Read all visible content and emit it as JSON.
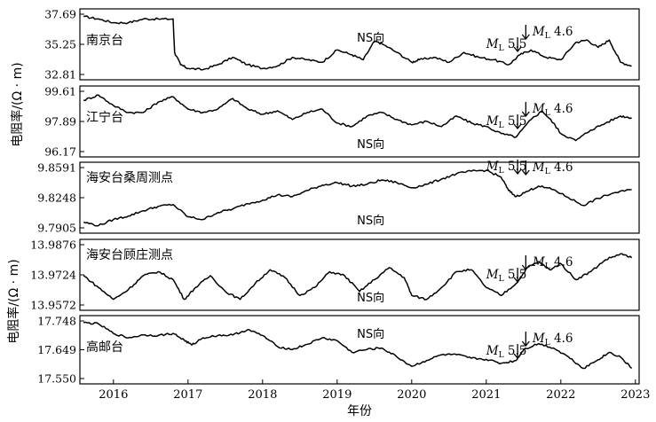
{
  "chart_data": {
    "type": "line",
    "xlabel": "年份",
    "ylabel_upper": "电阻率/(Ω · m)",
    "ylabel_lower": "电阻率/(Ω · m)",
    "x_ticks": [
      "2016",
      "2017",
      "2018",
      "2019",
      "2020",
      "2021",
      "2022",
      "2023"
    ],
    "xlim": [
      2015.55,
      2023.05
    ],
    "events": [
      {
        "label": "5.5",
        "magnitude_prefix": "M",
        "magnitude_sub": "L",
        "x": 2021.42
      },
      {
        "label": "4.6",
        "magnitude_prefix": "M",
        "magnitude_sub": "L",
        "x": 2021.53
      }
    ],
    "panels": [
      {
        "name": "南京台",
        "direction": "NS向",
        "ylim": [
          32.81,
          37.69
        ],
        "yticks": [
          "37.69",
          "35.25",
          "32.81"
        ],
        "points": [
          [
            2015.6,
            37.5
          ],
          [
            2015.8,
            37.3
          ],
          [
            2016.0,
            37.0
          ],
          [
            2016.2,
            37.0
          ],
          [
            2016.4,
            37.3
          ],
          [
            2016.6,
            37.3
          ],
          [
            2016.8,
            37.3
          ],
          [
            2016.82,
            34.6
          ],
          [
            2016.9,
            33.6
          ],
          [
            2017.0,
            33.3
          ],
          [
            2017.2,
            33.2
          ],
          [
            2017.4,
            33.6
          ],
          [
            2017.6,
            34.2
          ],
          [
            2017.8,
            33.6
          ],
          [
            2018.0,
            33.3
          ],
          [
            2018.2,
            33.5
          ],
          [
            2018.4,
            34.2
          ],
          [
            2018.6,
            34.0
          ],
          [
            2018.8,
            33.8
          ],
          [
            2019.0,
            34.8
          ],
          [
            2019.2,
            34.4
          ],
          [
            2019.35,
            34.0
          ],
          [
            2019.5,
            35.5
          ],
          [
            2019.6,
            35.3
          ],
          [
            2019.8,
            34.6
          ],
          [
            2020.0,
            33.8
          ],
          [
            2020.1,
            34.0
          ],
          [
            2020.3,
            34.2
          ],
          [
            2020.5,
            33.8
          ],
          [
            2020.7,
            34.6
          ],
          [
            2020.9,
            34.2
          ],
          [
            2021.1,
            34.0
          ],
          [
            2021.3,
            33.6
          ],
          [
            2021.45,
            34.4
          ],
          [
            2021.6,
            34.8
          ],
          [
            2021.8,
            34.2
          ],
          [
            2022.0,
            34.0
          ],
          [
            2022.2,
            35.4
          ],
          [
            2022.35,
            35.6
          ],
          [
            2022.5,
            35.0
          ],
          [
            2022.65,
            35.6
          ],
          [
            2022.8,
            33.8
          ],
          [
            2022.95,
            33.5
          ]
        ],
        "labels": {
          "dir_x": 2019.45,
          "eq1_x": 2021.0,
          "eq2_x": 2021.62
        }
      },
      {
        "name": "江宁台",
        "direction": "NS向",
        "ylim": [
          96.17,
          99.61
        ],
        "yticks": [
          "99.61",
          "97.89",
          "96.17"
        ],
        "points": [
          [
            2015.6,
            99.1
          ],
          [
            2015.8,
            99.4
          ],
          [
            2016.0,
            98.8
          ],
          [
            2016.2,
            98.4
          ],
          [
            2016.4,
            98.4
          ],
          [
            2016.6,
            99.0
          ],
          [
            2016.8,
            99.3
          ],
          [
            2017.0,
            98.6
          ],
          [
            2017.2,
            98.4
          ],
          [
            2017.4,
            98.6
          ],
          [
            2017.6,
            99.2
          ],
          [
            2017.8,
            98.6
          ],
          [
            2018.0,
            98.3
          ],
          [
            2018.2,
            98.5
          ],
          [
            2018.4,
            98.0
          ],
          [
            2018.6,
            98.4
          ],
          [
            2018.8,
            98.6
          ],
          [
            2019.0,
            97.8
          ],
          [
            2019.2,
            97.6
          ],
          [
            2019.4,
            98.2
          ],
          [
            2019.6,
            98.4
          ],
          [
            2019.8,
            98.0
          ],
          [
            2020.0,
            97.7
          ],
          [
            2020.2,
            97.9
          ],
          [
            2020.4,
            97.6
          ],
          [
            2020.6,
            98.2
          ],
          [
            2020.8,
            97.8
          ],
          [
            2021.0,
            97.6
          ],
          [
            2021.2,
            97.2
          ],
          [
            2021.4,
            97.0
          ],
          [
            2021.6,
            98.0
          ],
          [
            2021.75,
            98.5
          ],
          [
            2021.9,
            97.8
          ],
          [
            2022.0,
            97.2
          ],
          [
            2022.2,
            96.8
          ],
          [
            2022.4,
            97.4
          ],
          [
            2022.6,
            97.8
          ],
          [
            2022.8,
            98.2
          ],
          [
            2022.95,
            98.1
          ]
        ],
        "labels": {
          "dir_x": 2019.45,
          "eq1_x": 2021.0,
          "eq2_x": 2021.62
        }
      },
      {
        "name": "海安台桑周测点",
        "direction": "NS向",
        "ylim": [
          9.7905,
          9.8591
        ],
        "yticks": [
          "9.8591",
          "9.8248",
          "9.7905"
        ],
        "points": [
          [
            2015.6,
            9.797
          ],
          [
            2015.8,
            9.793
          ],
          [
            2016.0,
            9.8
          ],
          [
            2016.2,
            9.804
          ],
          [
            2016.4,
            9.81
          ],
          [
            2016.6,
            9.815
          ],
          [
            2016.8,
            9.817
          ],
          [
            2017.0,
            9.803
          ],
          [
            2017.2,
            9.8
          ],
          [
            2017.4,
            9.808
          ],
          [
            2017.6,
            9.812
          ],
          [
            2017.8,
            9.818
          ],
          [
            2018.0,
            9.822
          ],
          [
            2018.2,
            9.828
          ],
          [
            2018.4,
            9.826
          ],
          [
            2018.6,
            9.833
          ],
          [
            2018.8,
            9.839
          ],
          [
            2019.0,
            9.842
          ],
          [
            2019.2,
            9.838
          ],
          [
            2019.4,
            9.84
          ],
          [
            2019.6,
            9.845
          ],
          [
            2019.8,
            9.842
          ],
          [
            2020.0,
            9.836
          ],
          [
            2020.2,
            9.84
          ],
          [
            2020.4,
            9.846
          ],
          [
            2020.6,
            9.852
          ],
          [
            2020.8,
            9.855
          ],
          [
            2021.0,
            9.856
          ],
          [
            2021.2,
            9.848
          ],
          [
            2021.3,
            9.833
          ],
          [
            2021.4,
            9.826
          ],
          [
            2021.55,
            9.832
          ],
          [
            2021.7,
            9.838
          ],
          [
            2021.9,
            9.834
          ],
          [
            2022.1,
            9.825
          ],
          [
            2022.3,
            9.816
          ],
          [
            2022.5,
            9.824
          ],
          [
            2022.7,
            9.83
          ],
          [
            2022.95,
            9.834
          ]
        ],
        "labels": {
          "dir_x": 2019.45,
          "eq1_x": 2021.0,
          "eq2_x": 2021.62
        }
      },
      {
        "name": "海安台顾庄测点",
        "direction": "NS向",
        "ylim": [
          13.9572,
          13.9876
        ],
        "yticks": [
          "13.9876",
          "13.9724",
          "13.9572"
        ],
        "points": [
          [
            2015.6,
            13.972
          ],
          [
            2015.8,
            13.966
          ],
          [
            2016.0,
            13.96
          ],
          [
            2016.2,
            13.965
          ],
          [
            2016.4,
            13.972
          ],
          [
            2016.6,
            13.974
          ],
          [
            2016.8,
            13.97
          ],
          [
            2016.95,
            13.96
          ],
          [
            2017.1,
            13.966
          ],
          [
            2017.3,
            13.972
          ],
          [
            2017.5,
            13.964
          ],
          [
            2017.7,
            13.96
          ],
          [
            2017.9,
            13.968
          ],
          [
            2018.1,
            13.975
          ],
          [
            2018.3,
            13.971
          ],
          [
            2018.5,
            13.962
          ],
          [
            2018.7,
            13.966
          ],
          [
            2018.9,
            13.974
          ],
          [
            2019.1,
            13.972
          ],
          [
            2019.3,
            13.964
          ],
          [
            2019.5,
            13.97
          ],
          [
            2019.7,
            13.976
          ],
          [
            2019.9,
            13.971
          ],
          [
            2020.0,
            13.962
          ],
          [
            2020.2,
            13.96
          ],
          [
            2020.4,
            13.966
          ],
          [
            2020.6,
            13.974
          ],
          [
            2020.8,
            13.975
          ],
          [
            2021.0,
            13.966
          ],
          [
            2021.2,
            13.962
          ],
          [
            2021.4,
            13.968
          ],
          [
            2021.55,
            13.976
          ],
          [
            2021.7,
            13.979
          ],
          [
            2021.85,
            13.975
          ],
          [
            2022.0,
            13.978
          ],
          [
            2022.2,
            13.97
          ],
          [
            2022.4,
            13.974
          ],
          [
            2022.6,
            13.98
          ],
          [
            2022.8,
            13.983
          ],
          [
            2022.95,
            13.981
          ]
        ],
        "labels": {
          "dir_x": 2019.45,
          "eq1_x": 2021.0,
          "eq2_x": 2021.62
        }
      },
      {
        "name": "高邮台",
        "direction": "NS向",
        "ylim": [
          17.55,
          17.748
        ],
        "yticks": [
          "17.748",
          "17.649",
          "17.550"
        ],
        "points": [
          [
            2015.6,
            17.742
          ],
          [
            2015.8,
            17.738
          ],
          [
            2016.0,
            17.705
          ],
          [
            2016.2,
            17.69
          ],
          [
            2016.4,
            17.7
          ],
          [
            2016.6,
            17.698
          ],
          [
            2016.8,
            17.705
          ],
          [
            2016.95,
            17.682
          ],
          [
            2017.05,
            17.665
          ],
          [
            2017.2,
            17.69
          ],
          [
            2017.4,
            17.698
          ],
          [
            2017.6,
            17.7
          ],
          [
            2017.8,
            17.718
          ],
          [
            2018.0,
            17.698
          ],
          [
            2018.2,
            17.66
          ],
          [
            2018.4,
            17.65
          ],
          [
            2018.6,
            17.668
          ],
          [
            2018.8,
            17.69
          ],
          [
            2019.0,
            17.68
          ],
          [
            2019.2,
            17.64
          ],
          [
            2019.4,
            17.65
          ],
          [
            2019.6,
            17.655
          ],
          [
            2019.8,
            17.625
          ],
          [
            2020.0,
            17.592
          ],
          [
            2020.2,
            17.612
          ],
          [
            2020.4,
            17.632
          ],
          [
            2020.6,
            17.632
          ],
          [
            2020.8,
            17.62
          ],
          [
            2021.0,
            17.616
          ],
          [
            2021.2,
            17.602
          ],
          [
            2021.4,
            17.612
          ],
          [
            2021.5,
            17.65
          ],
          [
            2021.7,
            17.67
          ],
          [
            2021.9,
            17.655
          ],
          [
            2022.1,
            17.625
          ],
          [
            2022.3,
            17.585
          ],
          [
            2022.5,
            17.615
          ],
          [
            2022.65,
            17.64
          ],
          [
            2022.8,
            17.624
          ],
          [
            2022.95,
            17.585
          ]
        ],
        "labels": {
          "dir_x": 2019.45,
          "eq1_x": 2021.0,
          "eq2_x": 2021.62
        }
      }
    ]
  }
}
